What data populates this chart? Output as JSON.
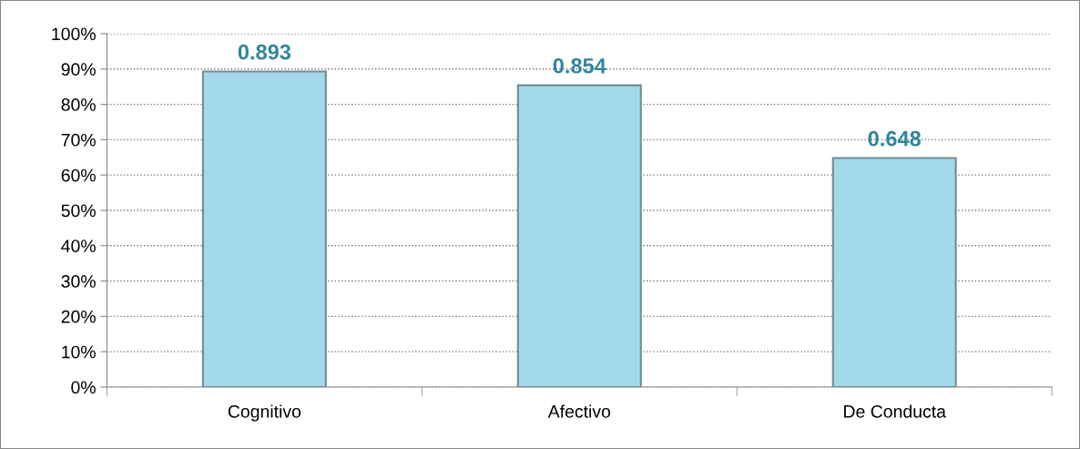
{
  "chart_data": {
    "type": "bar",
    "categories": [
      "Cognitivo",
      "Afectivo",
      "De Conducta"
    ],
    "values": [
      0.893,
      0.854,
      0.648
    ],
    "color": "#a3d9ea",
    "data_labels": true,
    "ylim": [
      0,
      1
    ],
    "yticks": [
      {
        "value": 0,
        "label": "0%"
      },
      {
        "value": 0.1,
        "label": "10%"
      },
      {
        "value": 0.2,
        "label": "20%"
      },
      {
        "value": 0.3,
        "label": "30%"
      },
      {
        "value": 0.4,
        "label": "40%"
      },
      {
        "value": 0.5,
        "label": "50%"
      },
      {
        "value": 0.6,
        "label": "60%"
      },
      {
        "value": 0.7,
        "label": "70%"
      },
      {
        "value": 0.8,
        "label": "80%"
      },
      {
        "value": 0.9,
        "label": "90%"
      },
      {
        "value": 1,
        "label": "100%"
      }
    ],
    "grid": "y"
  }
}
